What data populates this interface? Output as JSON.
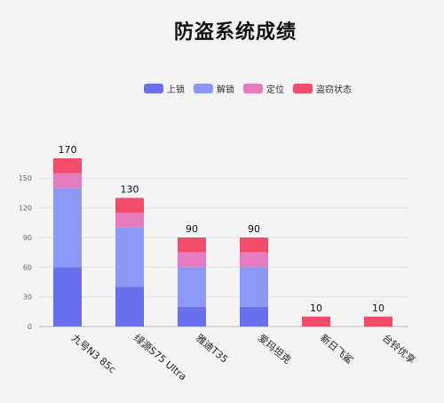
{
  "chart_data": {
    "type": "bar",
    "stacked": true,
    "title": "防盗系统成绩",
    "categories": [
      "九号N3 85c",
      "绿源S75 Ultra",
      "雅迪T35",
      "爱玛坦克",
      "新日飞鲨",
      "台铃优享"
    ],
    "series": [
      {
        "name": "上锁",
        "color": "#6870ee",
        "values": [
          60,
          40,
          20,
          20,
          0,
          0
        ]
      },
      {
        "name": "解锁",
        "color": "#8b98f6",
        "values": [
          80,
          60,
          40,
          40,
          0,
          0
        ]
      },
      {
        "name": "定位",
        "color": "#e77bbf",
        "values": [
          15,
          15,
          15,
          15,
          0,
          0
        ]
      },
      {
        "name": "盗窃状态",
        "color": "#f34b6a",
        "values": [
          15,
          15,
          15,
          15,
          10,
          10
        ]
      }
    ],
    "totals": [
      "170",
      "130",
      "90",
      "90",
      "10",
      "10"
    ],
    "yticks": [
      "0",
      "30",
      "60",
      "90",
      "120",
      "150"
    ],
    "ylim": [
      0,
      170
    ],
    "grid": true,
    "legend_position": "top-center"
  }
}
